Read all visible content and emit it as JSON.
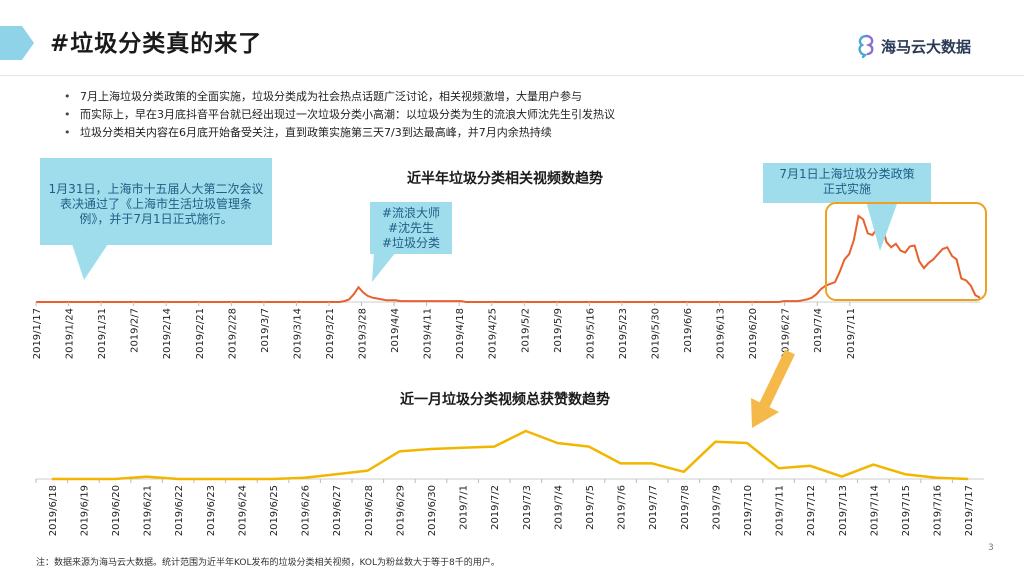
{
  "slide": {
    "title": "#垃圾分类真的来了",
    "logo_text": "海马云大数据",
    "page_number": "3",
    "footnote": "注：数据来源为海马云大数据。统计范围为近半年KOL发布的垃圾分类相关视频，KOL为粉丝数大于等于8千的用户。",
    "accent_color": "#f0a020",
    "tab_color": "#8fd3e8"
  },
  "bullets": [
    "7月上海垃圾分类政策的全面实施，垃圾分类成为社会热点话题广泛讨论，相关视频激增，大量用户参与",
    "而实际上，早在3月底抖音平台就已经出现过一次垃圾分类小高潮：以垃圾分类为生的流浪大师沈先生引发热议",
    "垃圾分类相关内容在6月底开始备受关注，直到政策实施第三天7/3到达最高峰，并7月内余热持续"
  ],
  "callouts": {
    "left": "1月31日，上海市十五届人大第二次会议表决通过了《上海市生活垃圾管理条例》，并于7月1日正式施行。",
    "middle": [
      "#流浪大师",
      "#沈先生",
      "#垃圾分类"
    ],
    "right": [
      "7月1日上海垃圾分类政策",
      "正式实施"
    ]
  },
  "chart_data": [
    {
      "type": "line",
      "title": "近半年垃圾分类相关视频数趋势",
      "line_color": "#e8612c",
      "x_tick_labels": [
        "2019/1/17",
        "2019/1/24",
        "2019/1/31",
        "2019/2/7",
        "2019/2/14",
        "2019/2/21",
        "2019/2/28",
        "2019/3/7",
        "2019/3/14",
        "2019/3/21",
        "2019/3/28",
        "2019/4/4",
        "2019/4/11",
        "2019/4/18",
        "2019/4/25",
        "2019/5/2",
        "2019/5/9",
        "2019/5/16",
        "2019/5/23",
        "2019/5/30",
        "2019/6/6",
        "2019/6/13",
        "2019/6/20",
        "2019/6/27",
        "2019/7/4",
        "2019/7/11"
      ],
      "x_start": "2019/1/17",
      "y_axis_shown": false,
      "note": "relative values (no y-axis printed)",
      "values": [
        1,
        1,
        1,
        1,
        1,
        1,
        1,
        1,
        1,
        1,
        1,
        1,
        1,
        1,
        1,
        1,
        1,
        1,
        1,
        1,
        1,
        1,
        1,
        1,
        1,
        1,
        1,
        1,
        1,
        1,
        1,
        1,
        1,
        1,
        1,
        1,
        1,
        1,
        1,
        1,
        1,
        1,
        1,
        1,
        1,
        1,
        1,
        1,
        1,
        1,
        1,
        1,
        1,
        1,
        1,
        1,
        1,
        1,
        1,
        1,
        1,
        1,
        1,
        1,
        1,
        1,
        2,
        4,
        10,
        18,
        12,
        8,
        6,
        5,
        4,
        3,
        3,
        3,
        2,
        2,
        2,
        2,
        2,
        2,
        2,
        2,
        2,
        2,
        2,
        2,
        2,
        2,
        1,
        1,
        1,
        1,
        1,
        1,
        1,
        1,
        1,
        1,
        1,
        1,
        1,
        1,
        1,
        1,
        1,
        1,
        1,
        1,
        1,
        1,
        1,
        1,
        1,
        1,
        1,
        1,
        1,
        1,
        1,
        1,
        1,
        1,
        1,
        1,
        1,
        1,
        1,
        1,
        1,
        1,
        1,
        1,
        1,
        1,
        1,
        1,
        1,
        1,
        1,
        1,
        1,
        1,
        1,
        1,
        1,
        1,
        1,
        1,
        1,
        1,
        1,
        1,
        1,
        1,
        1,
        1,
        2,
        2,
        2,
        2,
        3,
        4,
        6,
        10,
        16,
        20,
        22,
        24,
        36,
        50,
        56,
        72,
        100,
        96,
        80,
        78,
        86,
        90,
        70,
        64,
        68,
        60,
        58,
        65,
        66,
        48,
        40,
        46,
        50,
        56,
        62,
        64,
        54,
        50,
        28,
        26,
        20,
        9,
        6
      ]
    },
    {
      "type": "line",
      "title": "近一月垃圾分类视频总获赞数趋势",
      "line_color": "#f2b600",
      "categories": [
        "2019/6/18",
        "2019/6/19",
        "2019/6/20",
        "2019/6/21",
        "2019/6/22",
        "2019/6/23",
        "2019/6/24",
        "2019/6/25",
        "2019/6/26",
        "2019/6/27",
        "2019/6/28",
        "2019/6/29",
        "2019/6/30",
        "2019/7/1",
        "2019/7/2",
        "2019/7/3",
        "2019/7/4",
        "2019/7/5",
        "2019/7/6",
        "2019/7/7",
        "2019/7/8",
        "2019/7/9",
        "2019/7/10",
        "2019/7/11",
        "2019/7/12",
        "2019/7/13",
        "2019/7/14",
        "2019/7/15",
        "2019/7/16",
        "2019/7/17"
      ],
      "y_axis_shown": false,
      "note": "relative values (no y-axis printed)",
      "values": [
        1,
        1,
        1,
        3,
        1,
        1,
        1,
        1,
        2,
        5,
        8,
        24,
        26,
        27,
        28,
        41,
        31,
        28,
        14,
        14,
        7,
        32,
        31,
        10,
        12,
        3,
        13,
        5,
        2,
        1
      ]
    }
  ]
}
